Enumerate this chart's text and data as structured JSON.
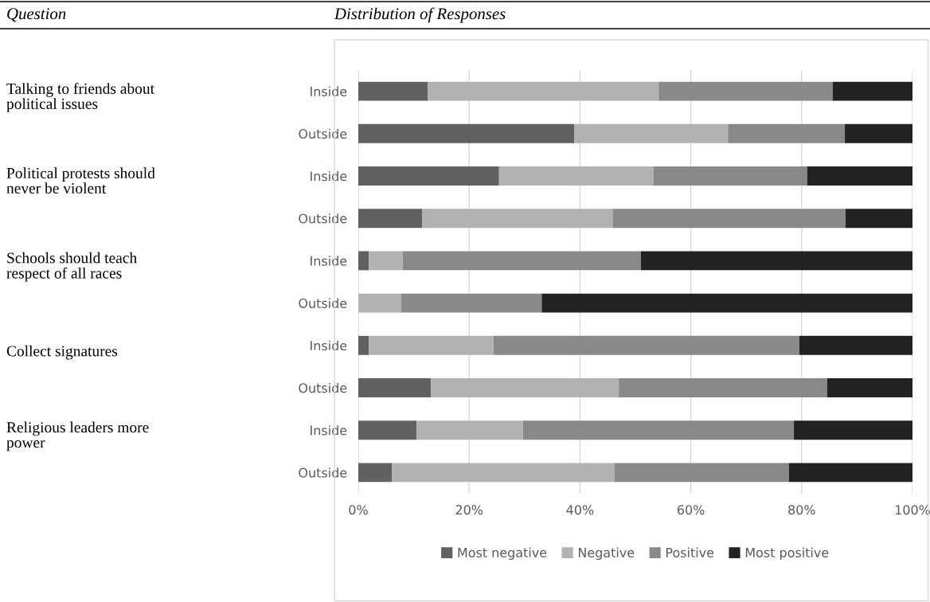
{
  "chart_data": {
    "type": "bar",
    "orientation": "horizontal",
    "stacked": true,
    "categories": [
      "Inside",
      "Outside",
      "Inside",
      "Outside",
      "Inside",
      "Outside",
      "Inside",
      "Outside",
      "Inside",
      "Outside"
    ],
    "series": [
      {
        "name": "Most negative",
        "color": "#616161",
        "values": [
          12.5,
          39.0,
          25.4,
          11.5,
          1.9,
          0,
          1.9,
          13.1,
          10.5,
          6.1
        ]
      },
      {
        "name": "Negative",
        "color": "#b2b2b2",
        "values": [
          41.7,
          27.7,
          27.9,
          34.4,
          6.1,
          7.7,
          22.5,
          33.9,
          19.2,
          40.1
        ]
      },
      {
        "name": "Positive",
        "color": "#898989",
        "values": [
          31.4,
          21.1,
          27.7,
          42.0,
          43.0,
          25.4,
          55.2,
          37.6,
          48.9,
          31.5
        ]
      },
      {
        "name": "Most positive",
        "color": "#222222",
        "values": [
          14.4,
          12.2,
          19.0,
          12.1,
          49.0,
          66.9,
          20.4,
          15.4,
          21.4,
          22.3
        ]
      }
    ],
    "xlim": [
      0,
      100
    ],
    "xticks": [
      {
        "value": 0,
        "label": "0%"
      },
      {
        "value": 20,
        "label": "20%"
      },
      {
        "value": 40,
        "label": "40%"
      },
      {
        "value": 60,
        "label": "60%"
      },
      {
        "value": 80,
        "label": "80%"
      },
      {
        "value": 100,
        "label": "100%"
      }
    ],
    "grid": "x",
    "legend": "bottom",
    "annotations": [
      "Question",
      "Distribution of Responses",
      "Talking to friends about\npolitical issues",
      "Political protests should\nnever be violent",
      "Schools should teach\nrespect of all races",
      "Collect signatures",
      "Religious leaders more\npower"
    ]
  }
}
